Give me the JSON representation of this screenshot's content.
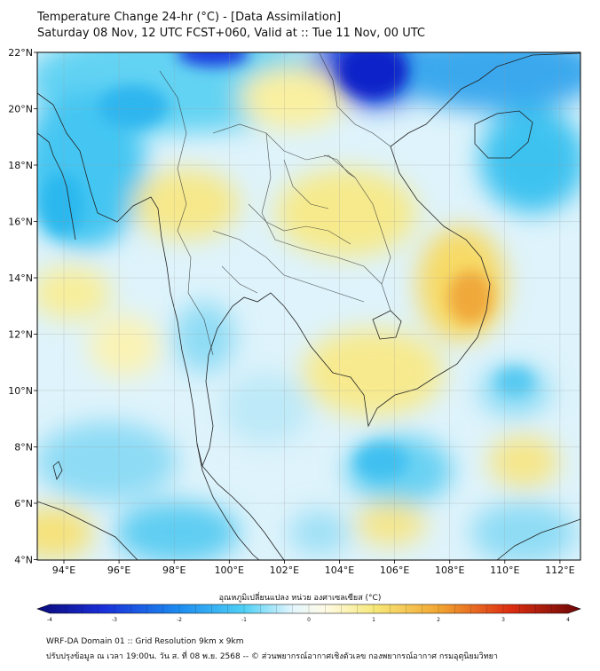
{
  "title": {
    "line1": "Temperature Change 24-hr (°C) - [Data Assimilation]",
    "line2": "Saturday 08 Nov, 12 UTC FCST+060, Valid at :: Tue 11 Nov, 00 UTC"
  },
  "map": {
    "lat_labels": [
      "22°N",
      "20°N",
      "18°N",
      "16°N",
      "14°N",
      "12°N",
      "10°N",
      "8°N",
      "6°N",
      "4°N"
    ],
    "lon_labels": [
      "94°E",
      "96°E",
      "98°E",
      "100°E",
      "102°E",
      "104°E",
      "106°E",
      "108°E",
      "110°E",
      "112°E"
    ]
  },
  "colorbar": {
    "label": "อุณหภูมิเปลี่ยนแปลง หน่วย องศาเซลเซียส (°C)",
    "ticks": [
      "-4",
      "-3",
      "-2",
      "-1",
      "0",
      "1",
      "2",
      "3",
      "4"
    ],
    "min": -4,
    "max": 4
  },
  "footer": {
    "line1": "WRF-DA Domain 01 :: Grid Resolution 9km x 9km",
    "line2": "ปรับปรุงข้อมูล ณ เวลา 19:00น. วัน ส. ที่ 08 พ.ย. 2568 -- © ส่วนพยากรณ์อากาศเชิงตัวเลข กองพยากรณ์อากาศ กรมอุตุนิยมวิทยา"
  },
  "colors": {
    "deep_cold": "#0a1fd0",
    "cold": "#35c8f2",
    "neutral": "#f4f7ff",
    "warm": "#f7ec80",
    "hot": "#f0a632"
  }
}
